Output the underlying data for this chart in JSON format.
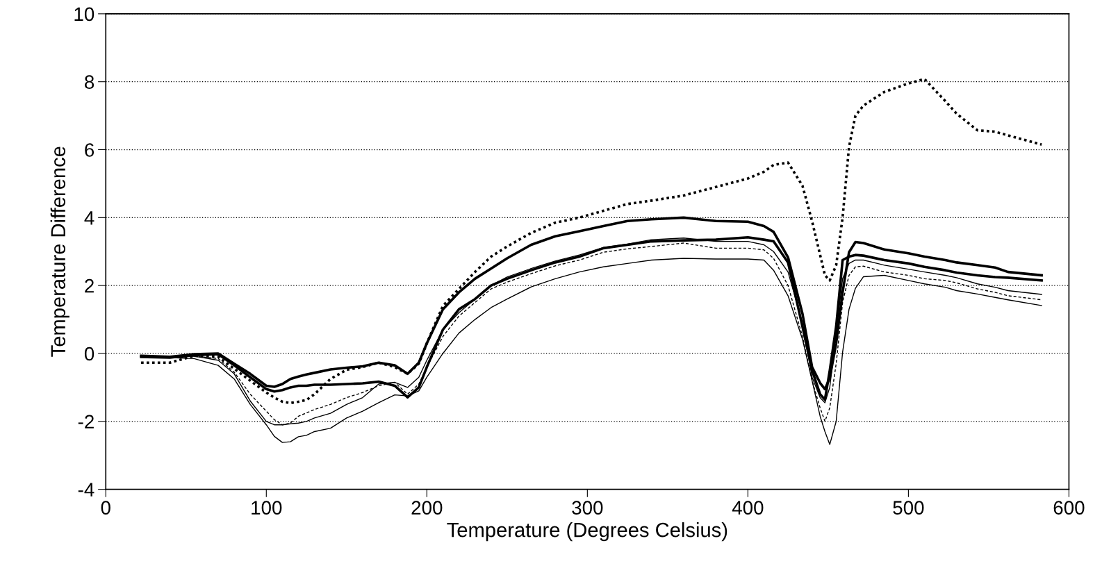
{
  "chart_data": {
    "type": "line",
    "xlabel": "Temperature (Degrees Celsius)",
    "ylabel": "Temperature Difference",
    "x": [
      22,
      40,
      55,
      70,
      80,
      90,
      100,
      105,
      110,
      115,
      120,
      125,
      130,
      140,
      150,
      160,
      170,
      180,
      188,
      195,
      200,
      210,
      220,
      230,
      240,
      250,
      265,
      280,
      295,
      310,
      325,
      340,
      360,
      380,
      400,
      410,
      416,
      425,
      434,
      440,
      445,
      448,
      451,
      455,
      459,
      463,
      467,
      472,
      485,
      500,
      510,
      523,
      530,
      543,
      554,
      562,
      583
    ],
    "series": [
      {
        "color": "#000000",
        "line_style": "dotted",
        "values": [
          -0.27,
          -0.27,
          -0.07,
          -0.1,
          -0.45,
          -0.8,
          -1.15,
          -1.3,
          -1.42,
          -1.46,
          -1.42,
          -1.37,
          -1.2,
          -0.75,
          -0.48,
          -0.4,
          -0.27,
          -0.4,
          -0.6,
          -0.3,
          0.3,
          1.4,
          1.9,
          2.4,
          2.85,
          3.15,
          3.55,
          3.85,
          4.0,
          4.2,
          4.4,
          4.5,
          4.65,
          4.9,
          5.15,
          5.35,
          5.55,
          5.62,
          4.94,
          3.89,
          2.9,
          2.3,
          2.15,
          2.6,
          4.0,
          6.08,
          7.0,
          7.3,
          7.7,
          7.95,
          8.08,
          7.43,
          7.06,
          6.57,
          6.53,
          6.42,
          6.15
        ]
      },
      {
        "color": "#000000",
        "line_style": "solid",
        "values": [
          -0.07,
          -0.1,
          -0.02,
          0,
          -0.3,
          -0.6,
          -0.95,
          -0.98,
          -0.9,
          -0.75,
          -0.68,
          -0.62,
          -0.57,
          -0.47,
          -0.42,
          -0.38,
          -0.27,
          -0.35,
          -0.6,
          -0.27,
          0.3,
          1.3,
          1.8,
          2.2,
          2.5,
          2.8,
          3.2,
          3.45,
          3.6,
          3.75,
          3.9,
          3.95,
          4.0,
          3.9,
          3.88,
          3.75,
          3.58,
          2.83,
          1.17,
          -0.4,
          -0.87,
          -1.05,
          -0.72,
          0.3,
          1.8,
          2.98,
          3.28,
          3.25,
          3.06,
          2.95,
          2.85,
          2.75,
          2.68,
          2.6,
          2.53,
          2.4,
          2.3
        ]
      },
      {
        "color": "#000000",
        "line_style": "solid",
        "values": [
          -0.1,
          -0.12,
          -0.05,
          -0.02,
          -0.35,
          -0.7,
          -1.05,
          -1.12,
          -1.08,
          -1.0,
          -0.95,
          -0.95,
          -0.92,
          -0.92,
          -0.9,
          -0.88,
          -0.83,
          -0.95,
          -1.29,
          -1.0,
          -0.4,
          0.7,
          1.3,
          1.6,
          2.0,
          2.2,
          2.45,
          2.68,
          2.85,
          3.1,
          3.2,
          3.3,
          3.33,
          3.35,
          3.42,
          3.35,
          3.3,
          2.68,
          0.79,
          -0.5,
          -1.2,
          -1.36,
          -0.5,
          0.8,
          2.75,
          2.85,
          2.9,
          2.88,
          2.75,
          2.65,
          2.55,
          2.45,
          2.38,
          2.3,
          2.25,
          2.23,
          2.15
        ]
      },
      {
        "color": "#000000",
        "line_style": "solid",
        "values": [
          -0.1,
          -0.12,
          -0.08,
          -0.2,
          -0.6,
          -1.4,
          -2.0,
          -2.1,
          -2.1,
          -2.07,
          -2.05,
          -2.0,
          -1.9,
          -1.76,
          -1.5,
          -1.3,
          -0.9,
          -0.85,
          -1.0,
          -0.7,
          -0.2,
          0.7,
          1.2,
          1.6,
          2.0,
          2.25,
          2.5,
          2.72,
          2.9,
          3.12,
          3.22,
          3.35,
          3.4,
          3.3,
          3.3,
          3.2,
          3.0,
          2.4,
          0.9,
          -0.7,
          -1.3,
          -1.45,
          -1.0,
          0.6,
          2.2,
          2.65,
          2.75,
          2.75,
          2.6,
          2.48,
          2.4,
          2.3,
          2.23,
          2.05,
          1.95,
          1.85,
          1.74
        ]
      },
      {
        "color": "#000000",
        "line_style": "dashed",
        "values": [
          -0.1,
          -0.12,
          -0.08,
          -0.15,
          -0.55,
          -1.2,
          -1.7,
          -1.95,
          -2.1,
          -2.05,
          -1.85,
          -1.75,
          -1.65,
          -1.5,
          -1.3,
          -1.15,
          -0.95,
          -0.85,
          -1.2,
          -0.9,
          -0.4,
          0.5,
          1.1,
          1.5,
          1.9,
          2.1,
          2.35,
          2.58,
          2.75,
          2.98,
          3.08,
          3.15,
          3.25,
          3.1,
          3.1,
          3.05,
          2.8,
          2.0,
          0.5,
          -0.8,
          -1.6,
          -2.0,
          -1.6,
          -0.3,
          1.5,
          2.3,
          2.55,
          2.57,
          2.4,
          2.3,
          2.2,
          2.15,
          2.08,
          1.9,
          1.8,
          1.7,
          1.58
        ]
      },
      {
        "color": "#000000",
        "line_style": "solid",
        "values": [
          -0.1,
          -0.12,
          -0.15,
          -0.35,
          -0.75,
          -1.5,
          -2.1,
          -2.44,
          -2.62,
          -2.6,
          -2.45,
          -2.41,
          -2.3,
          -2.2,
          -1.9,
          -1.7,
          -1.45,
          -1.22,
          -1.25,
          -1.1,
          -0.7,
          0.0,
          0.6,
          1.0,
          1.35,
          1.6,
          1.96,
          2.2,
          2.4,
          2.55,
          2.65,
          2.75,
          2.8,
          2.78,
          2.78,
          2.75,
          2.45,
          1.7,
          0.42,
          -0.8,
          -1.85,
          -2.3,
          -2.68,
          -2.0,
          0.04,
          1.3,
          1.92,
          2.26,
          2.3,
          2.15,
          2.05,
          1.95,
          1.85,
          1.75,
          1.65,
          1.58,
          1.41
        ]
      }
    ],
    "xlim": [
      0,
      600
    ],
    "xticks": [
      0,
      100,
      200,
      300,
      400,
      500,
      600
    ],
    "ylim": [
      -4,
      10
    ],
    "yticks": [
      -4,
      -2,
      0,
      2,
      4,
      6,
      8,
      10
    ],
    "grid": "y",
    "marker": "none"
  }
}
